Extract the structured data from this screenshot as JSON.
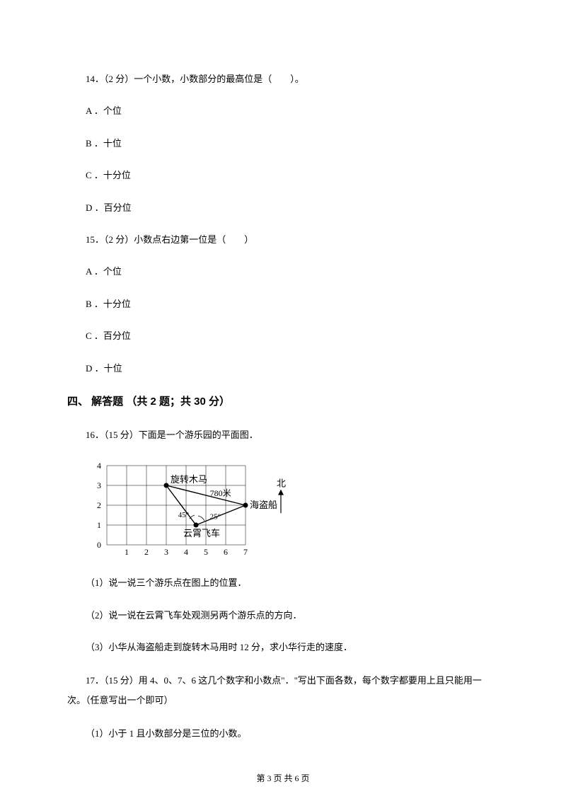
{
  "q14": {
    "number": "14．",
    "points": "（2 分）",
    "text": "一个小数，小数部分的最高位是（　　）。",
    "options": {
      "a": "A ．个位",
      "b": "B ．十位",
      "c": "C ．十分位",
      "d": "D ．百分位"
    }
  },
  "q15": {
    "number": "15．",
    "points": "（2 分）",
    "text": "小数点右边第一位是（　　）",
    "options": {
      "a": "A ．个位",
      "b": "B ．十分位",
      "c": "C ．百分位",
      "d": "D ．十位"
    }
  },
  "section4": {
    "title": "四、 解答题 （共 2 题；共 30 分）"
  },
  "q16": {
    "number": "16．",
    "points": "（15 分）",
    "text": "下面是一个游乐园的平面图．",
    "sub1": "（1）说一说三个游乐点在图上的位置．",
    "sub2": "（2）说一说在云霄飞车处观测另两个游乐点的方向．",
    "sub3": "（3）小华从海盗船走到旋转木马用时 12 分，求小华行走的速度．",
    "chart": {
      "grid": {
        "xMin": 0,
        "xMax": 7,
        "yMin": 0,
        "yMax": 4,
        "cell": 28
      },
      "xTicks": [
        0,
        1,
        2,
        3,
        4,
        5,
        6,
        7
      ],
      "yTicks": [
        0,
        1,
        2,
        3,
        4
      ],
      "points": {
        "carousel": {
          "x": 3,
          "y": 3,
          "label": "旋转木马"
        },
        "rollercoaster": {
          "x": 4.5,
          "y": 1,
          "label": "云霄飞车"
        },
        "pirateship": {
          "x": 7,
          "y": 2,
          "label": "海盗船"
        }
      },
      "edges": [
        {
          "from": "carousel",
          "to": "rollercoaster"
        },
        {
          "from": "rollercoaster",
          "to": "pirateship"
        },
        {
          "from": "carousel",
          "to": "pirateship"
        }
      ],
      "annotations": {
        "distance": "780米",
        "angle1": "45°",
        "angle2": "25°"
      },
      "north": "北",
      "stroke": "#000000",
      "gridStroke": "#000000",
      "gridStrokeWidth": 0.5,
      "pointRadius": 3.5
    }
  },
  "q17": {
    "number": "17．",
    "points": "（15 分）",
    "text_part1": "用 4、0、7、6 这几个数字和小数点\"．\"写出下面各数，每个数字都要用上且只能用一",
    "text_part2": "次。（任意写出一个即可）",
    "sub1": "（1）小于 1 且小数部分是三位的小数。"
  },
  "footer": {
    "text": "第 3 页 共 6 页"
  }
}
